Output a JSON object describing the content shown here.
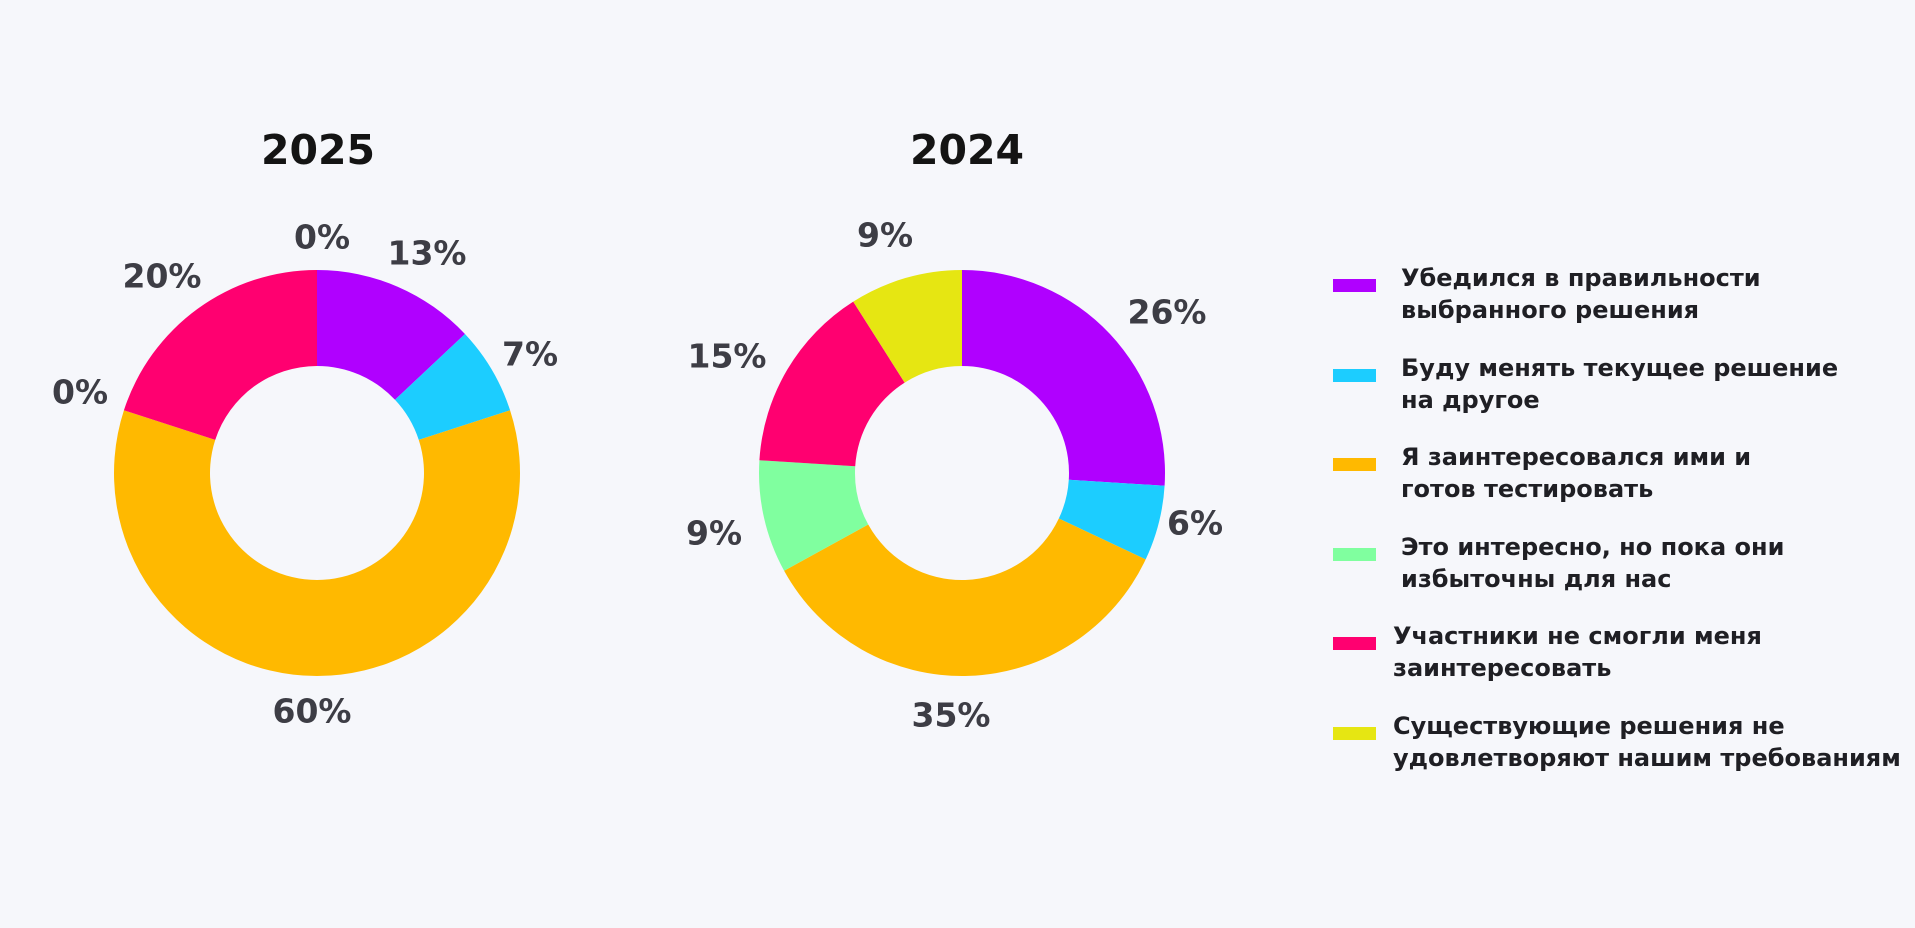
{
  "legend": [
    {
      "label": "Убедился в правильности\nвыбранного решения",
      "color": "#b000ff"
    },
    {
      "label": "Буду менять текущее решение\nна другое",
      "color": "#1ccdff"
    },
    {
      "label": "Я заинтересовался ими и\nготов тестировать",
      "color": "#ffb900"
    },
    {
      "label": "Это интересно, но пока они\nизбыточны для нас",
      "color": "#80ff9f"
    },
    {
      "label": "Участники не смогли меня\nзаинтересовать",
      "color": "#ff0070"
    },
    {
      "label": "Существующие решения не\nудовлетворяют нашим требованиям",
      "color": "#e6e612"
    }
  ],
  "chart_data": [
    {
      "type": "pie",
      "title": "2025",
      "donut": true,
      "categories": [
        "Убедился в правильности выбранного решения",
        "Буду менять текущее решение на другое",
        "Я заинтересовался ими и готов тестировать",
        "Это интересно, но пока они избыточны для нас",
        "Участники не смогли меня заинтересовать",
        "Существующие решения не удовлетворяют нашим требованиям"
      ],
      "values": [
        13,
        7,
        60,
        0,
        20,
        0
      ],
      "labels": [
        "13%",
        "7%",
        "60%",
        "0%",
        "20%",
        "0%"
      ],
      "colors": [
        "#b000ff",
        "#1ccdff",
        "#ffb900",
        "#80ff9f",
        "#ff0070",
        "#e6e612"
      ]
    },
    {
      "type": "pie",
      "title": "2024",
      "donut": true,
      "categories": [
        "Убедился в правильности выбранного решения",
        "Буду менять текущее решение на другое",
        "Я заинтересовался ими и готов тестировать",
        "Это интересно, но пока они избыточны для нас",
        "Участники не смогли меня заинтересовать",
        "Существующие решения не удовлетворяют нашим требованиям"
      ],
      "values": [
        26,
        6,
        35,
        9,
        15,
        9
      ],
      "labels": [
        "26%",
        "6%",
        "35%",
        "9%",
        "15%",
        "9%"
      ],
      "colors": [
        "#b000ff",
        "#1ccdff",
        "#ffb900",
        "#80ff9f",
        "#ff0070",
        "#e6e612"
      ]
    }
  ]
}
